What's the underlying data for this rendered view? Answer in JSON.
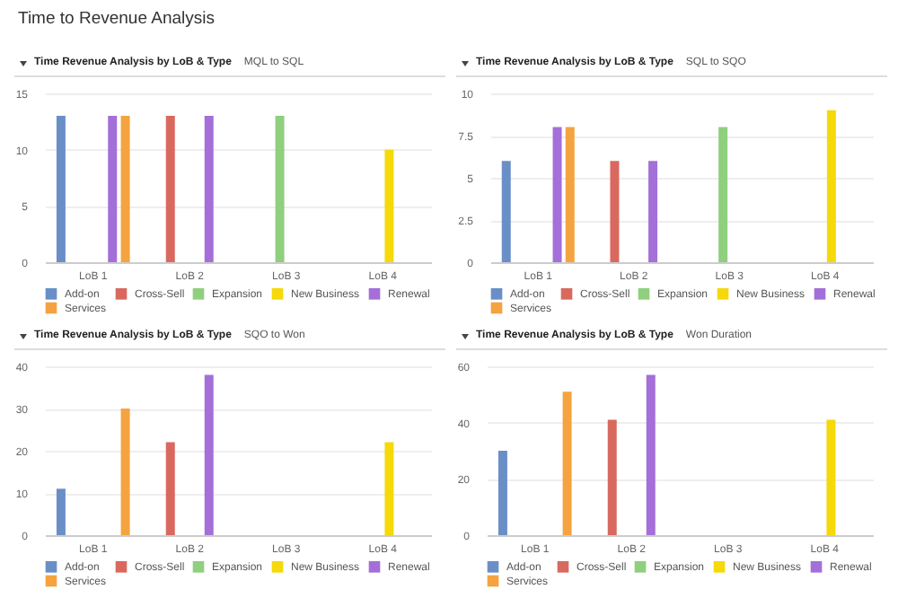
{
  "chart_data": [
    {
      "type": "bar",
      "title": "Time Revenue Analysis by LoB & Type",
      "subtitle": "MQL to SQL",
      "annotations": [
        "Time to Revenue Analysis"
      ],
      "categories": [
        "LoB 1",
        "LoB 2",
        "LoB 3",
        "LoB 4"
      ],
      "ylim": [
        0,
        15
      ],
      "yticks": [
        0,
        5,
        10,
        15
      ],
      "grid": "y",
      "legend": "bottom",
      "series": [
        {
          "name": "Add-on",
          "color": "#6a8fc7",
          "values": [
            13,
            null,
            null,
            null
          ]
        },
        {
          "name": "Cross-Sell",
          "color": "#d9695f",
          "values": [
            null,
            13,
            null,
            null
          ]
        },
        {
          "name": "Expansion",
          "color": "#8fcf7e",
          "values": [
            null,
            null,
            13,
            null
          ]
        },
        {
          "name": "New Business",
          "color": "#f5d90a",
          "values": [
            null,
            null,
            null,
            10
          ]
        },
        {
          "name": "Renewal",
          "color": "#a46fd8",
          "values": [
            13,
            13,
            null,
            null
          ]
        },
        {
          "name": "Services",
          "color": "#f4a340",
          "values": [
            13,
            null,
            null,
            null
          ]
        }
      ]
    },
    {
      "type": "bar",
      "title": "Time Revenue Analysis by LoB & Type",
      "subtitle": "SQL to SQO",
      "categories": [
        "LoB 1",
        "LoB 2",
        "LoB 3",
        "LoB 4"
      ],
      "ylim": [
        0,
        10
      ],
      "yticks": [
        0,
        2.5,
        5,
        7.5,
        10
      ],
      "grid": "y",
      "legend": "bottom",
      "series": [
        {
          "name": "Add-on",
          "color": "#6a8fc7",
          "values": [
            6,
            null,
            null,
            null
          ]
        },
        {
          "name": "Cross-Sell",
          "color": "#d9695f",
          "values": [
            null,
            6,
            null,
            null
          ]
        },
        {
          "name": "Expansion",
          "color": "#8fcf7e",
          "values": [
            null,
            null,
            8,
            null
          ]
        },
        {
          "name": "New Business",
          "color": "#f5d90a",
          "values": [
            null,
            null,
            null,
            9
          ]
        },
        {
          "name": "Renewal",
          "color": "#a46fd8",
          "values": [
            8,
            6,
            null,
            null
          ]
        },
        {
          "name": "Services",
          "color": "#f4a340",
          "values": [
            8,
            null,
            null,
            null
          ]
        }
      ]
    },
    {
      "type": "bar",
      "title": "Time Revenue Analysis by LoB & Type",
      "subtitle": "SQO to Won",
      "categories": [
        "LoB 1",
        "LoB 2",
        "LoB 3",
        "LoB 4"
      ],
      "ylim": [
        0,
        40
      ],
      "yticks": [
        0,
        10,
        20,
        30,
        40
      ],
      "grid": "y",
      "legend": "bottom",
      "series": [
        {
          "name": "Add-on",
          "color": "#6a8fc7",
          "values": [
            11,
            null,
            null,
            null
          ]
        },
        {
          "name": "Cross-Sell",
          "color": "#d9695f",
          "values": [
            null,
            22,
            null,
            null
          ]
        },
        {
          "name": "Expansion",
          "color": "#8fcf7e",
          "values": [
            null,
            null,
            null,
            null
          ]
        },
        {
          "name": "New Business",
          "color": "#f5d90a",
          "values": [
            null,
            null,
            null,
            22
          ]
        },
        {
          "name": "Renewal",
          "color": "#a46fd8",
          "values": [
            null,
            38,
            null,
            null
          ]
        },
        {
          "name": "Services",
          "color": "#f4a340",
          "values": [
            30,
            null,
            null,
            null
          ]
        }
      ]
    },
    {
      "type": "bar",
      "title": "Time Revenue Analysis by LoB & Type",
      "subtitle": "Won Duration",
      "categories": [
        "LoB 1",
        "LoB 2",
        "LoB 3",
        "LoB 4"
      ],
      "ylim": [
        0,
        60
      ],
      "yticks": [
        0,
        20,
        40,
        60
      ],
      "grid": "y",
      "legend": "bottom",
      "series": [
        {
          "name": "Add-on",
          "color": "#6a8fc7",
          "values": [
            30,
            null,
            null,
            null
          ]
        },
        {
          "name": "Cross-Sell",
          "color": "#d9695f",
          "values": [
            null,
            41,
            null,
            null
          ]
        },
        {
          "name": "Expansion",
          "color": "#8fcf7e",
          "values": [
            null,
            null,
            null,
            null
          ]
        },
        {
          "name": "New Business",
          "color": "#f5d90a",
          "values": [
            null,
            null,
            null,
            41
          ]
        },
        {
          "name": "Renewal",
          "color": "#a46fd8",
          "values": [
            null,
            57,
            null,
            null
          ]
        },
        {
          "name": "Services",
          "color": "#f4a340",
          "values": [
            51,
            null,
            null,
            null
          ]
        }
      ]
    }
  ]
}
